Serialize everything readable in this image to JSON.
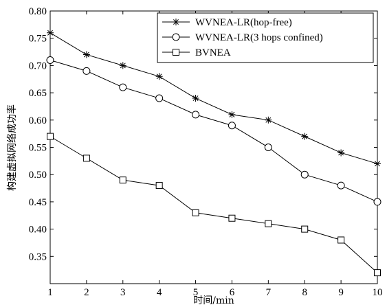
{
  "chart_data": {
    "type": "line",
    "title": "",
    "xlabel": "时间/min",
    "ylabel": "构建虚拟网络成功率",
    "x": [
      1,
      2,
      3,
      4,
      5,
      6,
      7,
      8,
      9,
      10
    ],
    "xlim": [
      1,
      10
    ],
    "ylim": [
      0.3,
      0.8
    ],
    "xticks": [
      "1",
      "2",
      "3",
      "4",
      "5",
      "6",
      "7",
      "8",
      "9",
      "10"
    ],
    "yticks": [
      "0.35",
      "0.40",
      "0.45",
      "0.50",
      "0.55",
      "0.60",
      "0.65",
      "0.70",
      "0.75",
      "0.80"
    ],
    "grid": false,
    "legend_position": "top-right",
    "series": [
      {
        "name": "WVNEA-LR(hop-free)",
        "marker": "star",
        "values": [
          0.76,
          0.72,
          0.7,
          0.68,
          0.64,
          0.61,
          0.6,
          0.57,
          0.54,
          0.52
        ]
      },
      {
        "name": "WVNEA-LR(3 hops confined)",
        "marker": "circle",
        "values": [
          0.71,
          0.69,
          0.66,
          0.64,
          0.61,
          0.59,
          0.55,
          0.5,
          0.48,
          0.45
        ]
      },
      {
        "name": "BVNEA",
        "marker": "square",
        "values": [
          0.57,
          0.53,
          0.49,
          0.48,
          0.43,
          0.42,
          0.41,
          0.4,
          0.38,
          0.32
        ]
      }
    ]
  }
}
